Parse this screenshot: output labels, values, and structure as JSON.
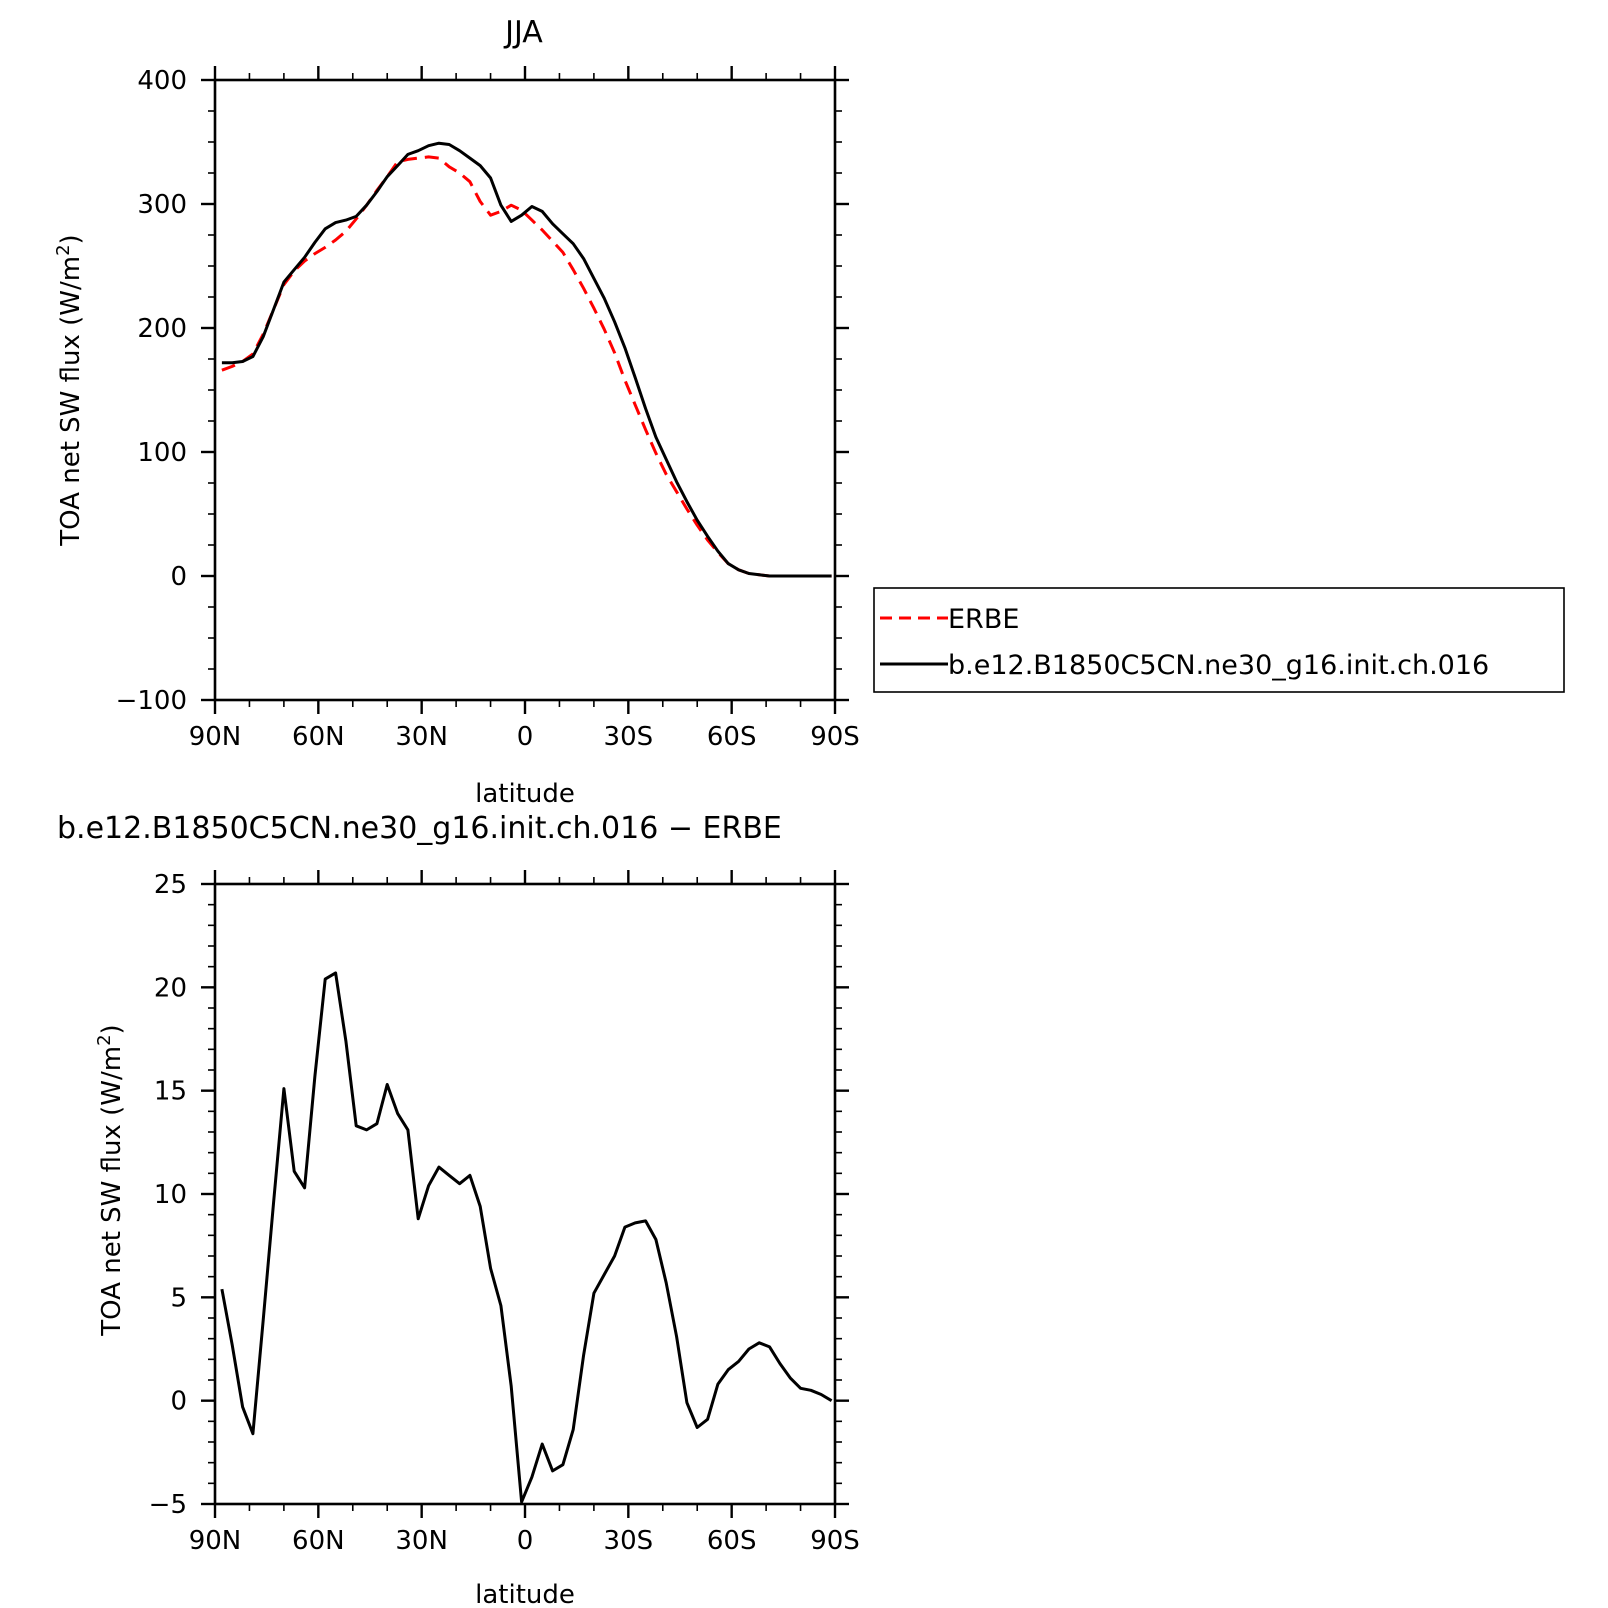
{
  "colors": {
    "ERBE": "#ff0000",
    "model": "#000000"
  },
  "chart_data": [
    {
      "type": "line",
      "title": "JJA",
      "xlabel": "latitude",
      "ylabel": "TOA net SW flux (W/m",
      "ylabel_sup": "2",
      "ylabel_close": ")",
      "xlim": [
        90,
        -90
      ],
      "ylim": [
        -100,
        400
      ],
      "xticks": [
        90,
        60,
        30,
        0,
        -30,
        -60,
        -90
      ],
      "xtick_labels": [
        "90N",
        "60N",
        "30N",
        "0",
        "30S",
        "60S",
        "90S"
      ],
      "yticks": [
        -100,
        0,
        100,
        200,
        300,
        400
      ],
      "ytick_labels": [
        "−100",
        "0",
        "100",
        "200",
        "300",
        "400"
      ],
      "legend": "right",
      "series": [
        {
          "name": "ERBE",
          "style": "dashed",
          "color": "#ff0000",
          "x": [
            88,
            85,
            82,
            79,
            76,
            73,
            70,
            67,
            64,
            61,
            58,
            55,
            52,
            49,
            46,
            43,
            40,
            37,
            34,
            31,
            28,
            25,
            22,
            19,
            16,
            13,
            10,
            7,
            4,
            1,
            -2,
            -5,
            -8,
            -11,
            -14,
            -17,
            -20,
            -23,
            -26,
            -29,
            -32,
            -35,
            -38,
            -41,
            -44,
            -47,
            -50,
            -53,
            -56,
            -59,
            -62,
            -65,
            -68,
            -71,
            -74,
            -77,
            -80,
            -83,
            -86,
            -89
          ],
          "y": [
            166,
            169,
            173,
            179,
            195,
            215,
            235,
            246,
            254,
            260,
            265,
            271,
            278,
            288,
            299,
            311,
            322,
            334,
            336,
            337,
            338,
            337,
            330,
            325,
            318,
            302,
            291,
            294,
            299,
            295,
            287,
            279,
            270,
            261,
            247,
            232,
            216,
            199,
            180,
            158,
            138,
            118,
            99,
            82,
            68,
            54,
            41,
            29,
            19,
            10,
            5,
            2,
            1,
            0,
            0,
            0,
            0,
            0,
            0,
            0
          ]
        },
        {
          "name": "b.e12.B1850C5CN.ne30_g16.init.ch.016",
          "style": "solid",
          "color": "#000000",
          "x": [
            88,
            85,
            82,
            79,
            76,
            73,
            70,
            67,
            64,
            61,
            58,
            55,
            52,
            49,
            46,
            43,
            40,
            37,
            34,
            31,
            28,
            25,
            22,
            19,
            16,
            13,
            10,
            7,
            4,
            1,
            -2,
            -5,
            -8,
            -11,
            -14,
            -17,
            -20,
            -23,
            -26,
            -29,
            -32,
            -35,
            -38,
            -41,
            -44,
            -47,
            -50,
            -53,
            -56,
            -59,
            -62,
            -65,
            -68,
            -71,
            -74,
            -77,
            -80,
            -83,
            -86,
            -89
          ],
          "y": [
            172,
            172,
            173,
            177,
            193,
            215,
            237,
            247,
            257,
            269,
            280,
            285,
            287,
            290,
            299,
            310,
            322,
            331,
            340,
            343,
            347,
            349,
            348,
            343,
            337,
            331,
            321,
            299,
            286,
            291,
            298,
            294,
            284,
            276,
            268,
            256,
            240,
            224,
            205,
            184,
            160,
            135,
            112,
            94,
            76,
            60,
            45,
            32,
            20,
            10,
            5,
            2,
            1,
            0,
            0,
            0,
            0,
            0,
            0,
            0
          ]
        }
      ]
    },
    {
      "type": "line",
      "title": "b.e12.B1850C5CN.ne30_g16.init.ch.016 − ERBE",
      "xlabel": "latitude",
      "ylabel": "TOA net SW flux (W/m",
      "ylabel_sup": "2",
      "ylabel_close": ")",
      "xlim": [
        90,
        -90
      ],
      "ylim": [
        -5,
        25
      ],
      "xticks": [
        90,
        60,
        30,
        0,
        -30,
        -60,
        -90
      ],
      "xtick_labels": [
        "90N",
        "60N",
        "30N",
        "0",
        "30S",
        "60S",
        "90S"
      ],
      "yticks": [
        -5,
        0,
        5,
        10,
        15,
        20,
        25
      ],
      "ytick_labels": [
        "−5",
        "0",
        "5",
        "10",
        "15",
        "20",
        "25"
      ],
      "series": [
        {
          "style": "solid",
          "color": "#000000",
          "x": [
            88,
            85,
            82,
            79,
            76,
            73,
            70,
            67,
            64,
            61,
            58,
            55,
            52,
            49,
            46,
            43,
            40,
            37,
            34,
            31,
            28,
            25,
            22,
            19,
            16,
            13,
            10,
            7,
            4,
            1,
            -2,
            -5,
            -8,
            -11,
            -14,
            -17,
            -20,
            -23,
            -26,
            -29,
            -32,
            -35,
            -38,
            -41,
            -44,
            -47,
            -50,
            -53,
            -56,
            -59,
            -62,
            -65,
            -68,
            -71,
            -74,
            -77,
            -80,
            -83,
            -86,
            -89
          ],
          "y": [
            5.4,
            2.7,
            -0.3,
            -1.6,
            3.9,
            9.6,
            15.1,
            11.1,
            10.3,
            15.7,
            20.4,
            20.7,
            17.4,
            13.3,
            13.1,
            13.4,
            15.3,
            13.9,
            13.1,
            8.8,
            10.4,
            11.3,
            10.9,
            10.5,
            10.9,
            9.4,
            6.4,
            4.6,
            0.7,
            -4.9,
            -3.7,
            -2.1,
            -3.4,
            -3.1,
            -1.4,
            2.2,
            5.2,
            6.1,
            7.0,
            8.4,
            8.6,
            8.7,
            7.8,
            5.7,
            3.1,
            -0.1,
            -1.3,
            -0.9,
            0.8,
            1.5,
            1.9,
            2.5,
            2.8,
            2.6,
            1.8,
            1.1,
            0.6,
            0.5,
            0.3,
            0.0
          ]
        }
      ]
    }
  ]
}
